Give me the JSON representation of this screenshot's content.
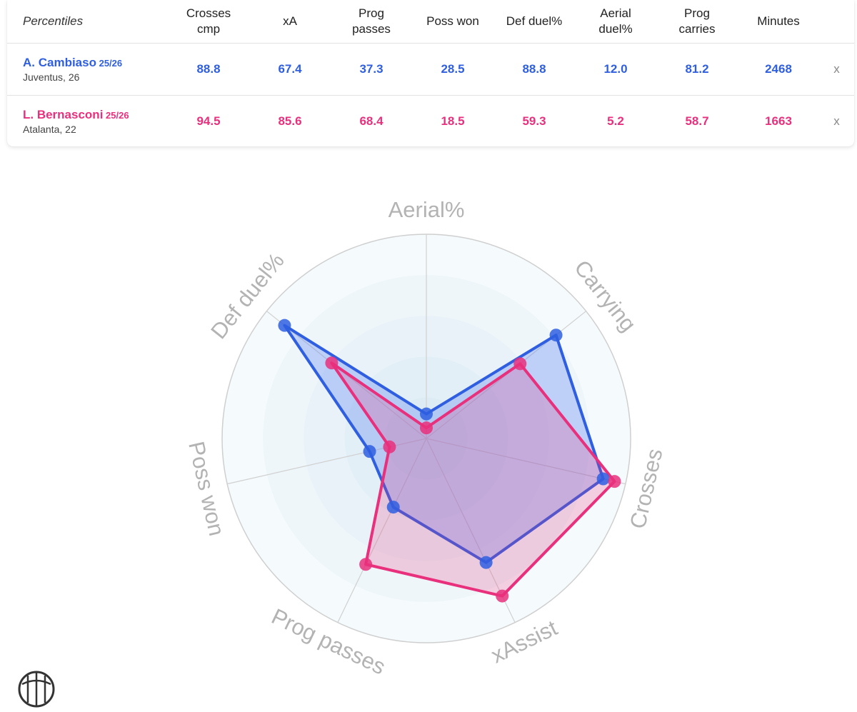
{
  "table": {
    "corner_label": "Percentiles",
    "columns": [
      [
        "Crosses",
        "cmp"
      ],
      [
        "xA"
      ],
      [
        "Prog",
        "passes"
      ],
      [
        "Poss won"
      ],
      [
        "Def duel%"
      ],
      [
        "Aerial",
        "duel%"
      ],
      [
        "Prog",
        "carries"
      ],
      [
        "Minutes"
      ]
    ],
    "remove_label": "x",
    "players": [
      {
        "name": "A. Cambiaso",
        "season": "25/26",
        "team": "Juventus, 26",
        "color": "#2f5fe0",
        "values": [
          "88.8",
          "67.4",
          "37.3",
          "28.5",
          "88.8",
          "12.0",
          "81.2",
          "2468"
        ]
      },
      {
        "name": "L. Bernasconi",
        "season": "25/26",
        "team": "Atalanta, 22",
        "color": "#e8307d",
        "values": [
          "94.5",
          "85.6",
          "68.4",
          "18.5",
          "59.3",
          "5.2",
          "58.7",
          "1663"
        ]
      }
    ]
  },
  "chart_data": {
    "type": "radar",
    "axes": [
      "Aerial%",
      "Carrying",
      "Crosses",
      "xAssist",
      "Prog passes",
      "Poss won",
      "Def duel%"
    ],
    "range": [
      0,
      100
    ],
    "grid": true,
    "series": [
      {
        "name": "A. Cambiaso",
        "color": "#2f5fe0",
        "values": [
          12.0,
          81.2,
          88.8,
          67.4,
          37.3,
          28.5,
          88.8
        ]
      },
      {
        "name": "L. Bernasconi",
        "color": "#e8307d",
        "values": [
          5.2,
          58.7,
          94.5,
          85.6,
          68.4,
          18.5,
          59.3
        ]
      }
    ]
  }
}
